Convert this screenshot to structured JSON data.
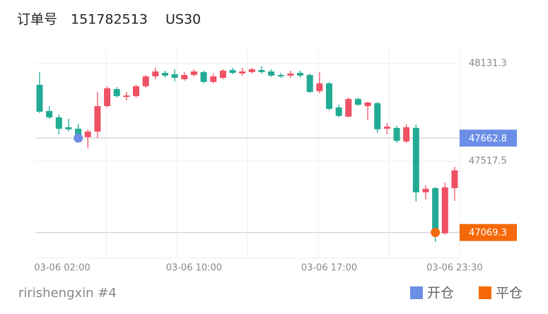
{
  "header": {
    "order_label": "订单号",
    "order_id": "151782513",
    "symbol": "US30"
  },
  "chart_data": {
    "type": "candlestick",
    "categories": [
      "03-06 02:00",
      null,
      null,
      null,
      null,
      null,
      null,
      null,
      null,
      null,
      null,
      null,
      null,
      null,
      null,
      null,
      "03-06 10:00",
      null,
      null,
      null,
      null,
      null,
      null,
      null,
      null,
      null,
      null,
      null,
      null,
      null,
      "03-06 17:00",
      null,
      null,
      null,
      null,
      null,
      null,
      null,
      null,
      null,
      null,
      null,
      null,
      "03-06 23:30"
    ],
    "open": [
      47998,
      47833,
      47793,
      47731,
      47722,
      47669,
      47704,
      47864,
      47971,
      47922,
      47927,
      47989,
      48051,
      48073,
      48065,
      48033,
      48060,
      48078,
      48016,
      48042,
      48091,
      48069,
      48078,
      48091,
      48082,
      48060,
      48056,
      48073,
      48060,
      47958,
      48007,
      47856,
      47798,
      47909,
      47864,
      47882,
      47722,
      47727,
      47642,
      47727,
      47322,
      47348,
      47064,
      47348
    ],
    "high": [
      48078,
      47864,
      47811,
      47784,
      47753,
      47718,
      47953,
      47989,
      47984,
      47953,
      47998,
      48060,
      48105,
      48087,
      48096,
      48078,
      48096,
      48087,
      48069,
      48096,
      48105,
      48105,
      48105,
      48114,
      48096,
      48073,
      48087,
      48087,
      48069,
      48078,
      48016,
      47873,
      47918,
      47918,
      47891,
      47891,
      47758,
      47740,
      47749,
      47749,
      47366,
      47357,
      47384,
      47482
    ],
    "low": [
      47820,
      47784,
      47687,
      47704,
      47660,
      47598,
      47664,
      47856,
      47918,
      47900,
      47918,
      47980,
      48033,
      48042,
      48020,
      48024,
      48051,
      48007,
      48007,
      48033,
      48065,
      48056,
      48069,
      48069,
      48047,
      48042,
      48042,
      48042,
      47945,
      47945,
      47838,
      47793,
      47793,
      47864,
      47775,
      47695,
      47687,
      47633,
      47633,
      47264,
      47277,
      47010,
      47055,
      47268
    ],
    "close": [
      47829,
      47793,
      47722,
      47718,
      47678,
      47704,
      47864,
      47976,
      47927,
      47931,
      47989,
      48051,
      48082,
      48056,
      48042,
      48060,
      48082,
      48016,
      48051,
      48087,
      48073,
      48082,
      48096,
      48078,
      48056,
      48051,
      48069,
      48056,
      47953,
      48007,
      47847,
      47802,
      47909,
      47873,
      47887,
      47718,
      47735,
      47646,
      47731,
      47322,
      47344,
      47064,
      47353,
      47460
    ],
    "up_color": "#ef5165",
    "down_color": "#22ab94",
    "ylim": [
      46908,
      48220
    ],
    "yticks": [
      47517.5,
      48131.3
    ],
    "grid": true,
    "markers": [
      {
        "name": "开仓",
        "color": "#6c8ee6",
        "index": 4,
        "value": 47662.8
      },
      {
        "name": "平仓",
        "color": "#f5690a",
        "index": 41,
        "value": 47069.3
      }
    ]
  },
  "footer": {
    "account": "ririshengxin #4"
  }
}
